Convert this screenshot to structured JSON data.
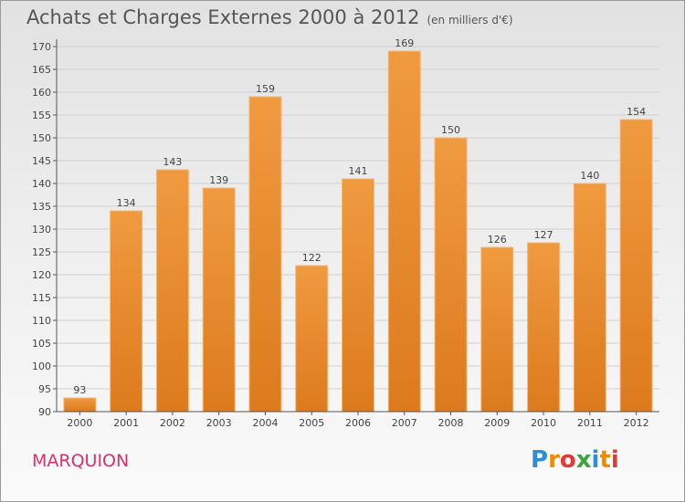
{
  "title": "Achats et Charges Externes 2000 à 2012",
  "subtitle": "(en milliers d'€)",
  "commune": "MARQUION",
  "logo": {
    "letters": [
      "P",
      "r",
      "o",
      "x",
      "i",
      "t",
      "i"
    ],
    "colors": [
      "#2e8fd4",
      "#f08a00",
      "#e53935",
      "#3aa53a",
      "#2e8fd4",
      "#f08a00",
      "#e53935"
    ]
  },
  "colors": {
    "bar": "#f09a40",
    "bar_dark": "#dd7a1e",
    "grid": "#cfcfcf",
    "axis": "#555555"
  },
  "chart_data": {
    "type": "bar",
    "categories": [
      "2000",
      "2001",
      "2002",
      "2003",
      "2004",
      "2005",
      "2006",
      "2007",
      "2008",
      "2009",
      "2010",
      "2011",
      "2012"
    ],
    "values": [
      93,
      134,
      143,
      139,
      159,
      122,
      141,
      169,
      150,
      126,
      127,
      140,
      154
    ],
    "ylim": [
      90,
      170
    ],
    "yticks": [
      90,
      95,
      100,
      105,
      110,
      115,
      120,
      125,
      130,
      135,
      140,
      145,
      150,
      155,
      160,
      165,
      170
    ],
    "grid": true,
    "legend": "none",
    "title": "Achats et Charges Externes 2000 à 2012",
    "xlabel": "",
    "ylabel": ""
  }
}
